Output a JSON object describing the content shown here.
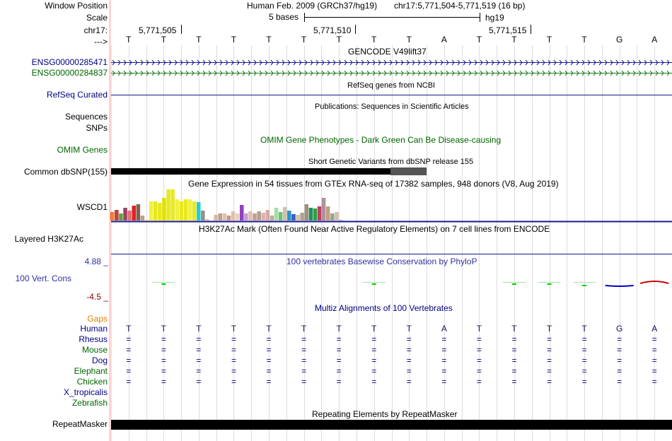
{
  "ruler": {
    "window_position_label": "Window Position",
    "assembly_text": "Human Feb. 2009 (GRCh37/hg19)",
    "position_text": "chr17:5,771,504-5,771,519 (16 bp)",
    "scale_label": "Scale",
    "scale_text": "5 bases",
    "scale_db": "hg19",
    "chrom_label": "chr17:",
    "ticks": [
      "5,771,505",
      "5,771,510",
      "5,771,515"
    ],
    "strand_label": "--->"
  },
  "bases": [
    "T",
    "T",
    "T",
    "T",
    "T",
    "T",
    "T",
    "T",
    "T",
    "A",
    "T",
    "T",
    "T",
    "T",
    "G",
    "A"
  ],
  "tracks": {
    "gencode": {
      "title": "GENCODE V49lift37",
      "genes": [
        {
          "label": "ENSG00000285471",
          "color": "#1a1a8c"
        },
        {
          "label": "ENSG00000284837",
          "color": "#1a7a1a"
        }
      ]
    },
    "refseq": {
      "title": "RefSeq genes from NCBI",
      "label": "RefSeq Curated"
    },
    "publications": {
      "title": "Publications: Sequences in Scientific Articles",
      "labels": [
        "Sequences",
        "SNPs"
      ]
    },
    "omim": {
      "title": "OMIM Gene Phenotypes - Dark Green Can Be Disease-causing",
      "label": "OMIM Genes"
    },
    "dbsnp": {
      "title": "Short Genetic Variants from dbSNP release 155",
      "label": "Common dbSNP(155)"
    },
    "gtex": {
      "title": "Gene Expression in 54 tissues from GTEx RNA-seq of 17382 samples, 948 donors (V8, Aug 2019)",
      "label": "WSCD1"
    },
    "h3k27ac": {
      "title": "H3K27Ac Mark (Often Found Near Active Regulatory Elements) on 7 cell lines from ENCODE",
      "label": "Layered H3K27Ac"
    },
    "phylop": {
      "title": "100 vertebrates Basewise Conservation by PhyloP",
      "label": "100 Vert. Cons",
      "max": "4.88 _",
      "min": "-4.5 _"
    },
    "multiz": {
      "title": "Multiz Alignments of 100 Vertebrates",
      "gaps_label": "Gaps",
      "species": [
        {
          "name": "Human",
          "row": "bases"
        },
        {
          "name": "Rhesus",
          "row": "eq"
        },
        {
          "name": "Mouse",
          "row": "eq"
        },
        {
          "name": "Dog",
          "row": "eq"
        },
        {
          "name": "Elephant",
          "row": "eq"
        },
        {
          "name": "Chicken",
          "row": "eq"
        },
        {
          "name": "X_tropicalis",
          "row": "none"
        },
        {
          "name": "Zebrafish",
          "row": "none"
        }
      ],
      "eq_symbol": "="
    },
    "repeatmasker": {
      "title": "Repeating Elements by RepeatMasker",
      "label": "RepeatMasker"
    }
  },
  "gtex_chart_data": {
    "type": "bar",
    "title": "Gene Expression in 54 tissues from GTEx RNA-seq of 17382 samples, 948 donors (V8, Aug 2019)",
    "ylim": [
      0,
      44
    ],
    "values": [
      12,
      15,
      10,
      18,
      14,
      21,
      23,
      7,
      1,
      27,
      27,
      25,
      32,
      44,
      44,
      30,
      27,
      30,
      30,
      27,
      26,
      14,
      2,
      0,
      8,
      10,
      10,
      7,
      13,
      10,
      22,
      10,
      13,
      10,
      13,
      11,
      15,
      7,
      18,
      12,
      19,
      14,
      9,
      8,
      11,
      23,
      18,
      17,
      20,
      32,
      20,
      10,
      12,
      1
    ],
    "colors": [
      "#f08030",
      "#c04040",
      "#60a040",
      "#a04060",
      "#e07070",
      "#e02020",
      "#806050",
      "#c0a080",
      "#f0f040",
      "#f0f040",
      "#e8e820",
      "#e8e820",
      "#e0e000",
      "#e8e820",
      "#e8e820",
      "#f0f040",
      "#e8e820",
      "#e8e820",
      "#f0f040",
      "#e8e820",
      "#20d0d0",
      "#909090",
      "#e0c0b0",
      "#e0c0b0",
      "#d8b8a0",
      "#c0a080",
      "#e0c0b0",
      "#c89880",
      "#e0c0b0",
      "#e8d0c0",
      "#9040c0",
      "#c0a0d0",
      "#e0c0b0",
      "#c0a090",
      "#b0a090",
      "#e0b0b0",
      "#d8a8a8",
      "#c0a8a0",
      "#a0e0a0",
      "#70c070",
      "#d0c0b0",
      "#3090d0",
      "#3060c0",
      "#d0c0b0",
      "#b0a090",
      "#a09080",
      "#209060",
      "#30a040",
      "#c04060",
      "#b090a0",
      "#c0a080",
      "#a0a090",
      "#d0c0b0",
      "#80d0a0"
    ]
  },
  "phylop_chart_data": {
    "type": "bar",
    "title": "100 vertebrates Basewise Conservation by PhyloP",
    "ylim": [
      -4.5,
      4.88
    ],
    "values": [
      0,
      0.05,
      0,
      0,
      0,
      0,
      0,
      0.1,
      0,
      0,
      0,
      0.3,
      0.3,
      -0.1,
      -0.3,
      0.6
    ],
    "colors": [
      "#00cc00",
      "#00cc00",
      "#00cc00",
      "#00cc00",
      "#00cc00",
      "#00cc00",
      "#00cc00",
      "#00cc00",
      "#00cc00",
      "#00cc00",
      "#00cc00",
      "#00cc00",
      "#00cc00",
      "#00cc00",
      "#0000cc",
      "#cc0000"
    ]
  }
}
